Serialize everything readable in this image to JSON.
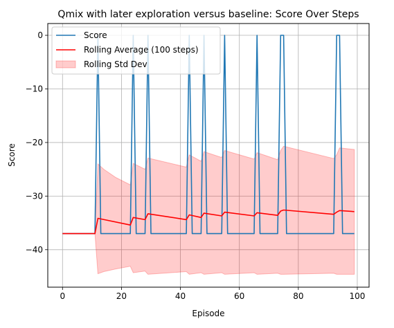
{
  "chart_data": {
    "type": "line",
    "title": "Qmix with later exploration versus baseline: Score Over Steps",
    "xlabel": "Episode",
    "ylabel": "Score",
    "xlim": [
      -5,
      104
    ],
    "ylim": [
      -47,
      2.2
    ],
    "xticks": [
      0,
      20,
      40,
      60,
      80,
      100
    ],
    "yticks": [
      0,
      -10,
      -20,
      -30,
      -40
    ],
    "xtick_labels": [
      "0",
      "20",
      "40",
      "60",
      "80",
      "100"
    ],
    "ytick_labels": [
      "0",
      "−10",
      "−20",
      "−30",
      "−40"
    ],
    "grid": true,
    "legend_position": "top-left",
    "legend": [
      "Score",
      "Rolling Average (100 steps)",
      "Rolling Std Dev"
    ],
    "colors": {
      "score": "#1f77b4",
      "rolling_avg": "#ff0000",
      "std_fill": "#ff9999"
    },
    "series": [
      {
        "name": "Score",
        "x": [
          0,
          1,
          2,
          3,
          4,
          5,
          6,
          7,
          8,
          9,
          10,
          11,
          12,
          13,
          14,
          15,
          16,
          17,
          18,
          19,
          20,
          21,
          22,
          23,
          24,
          25,
          26,
          27,
          28,
          29,
          30,
          31,
          32,
          33,
          34,
          35,
          36,
          37,
          38,
          39,
          40,
          41,
          42,
          43,
          44,
          45,
          46,
          47,
          48,
          49,
          50,
          51,
          52,
          53,
          54,
          55,
          56,
          57,
          58,
          59,
          60,
          61,
          62,
          63,
          64,
          65,
          66,
          67,
          68,
          69,
          70,
          71,
          72,
          73,
          74,
          75,
          76,
          77,
          78,
          79,
          80,
          81,
          82,
          83,
          84,
          85,
          86,
          87,
          88,
          89,
          90,
          91,
          92,
          93,
          94,
          95,
          96,
          97,
          98,
          99
        ],
        "values": [
          -37,
          -37,
          -37,
          -37,
          -37,
          -37,
          -37,
          -37,
          -37,
          -37,
          -37,
          -37,
          0,
          -37,
          -37,
          -37,
          -37,
          -37,
          -37,
          -37,
          -37,
          -37,
          -37,
          -37,
          0,
          -37,
          -37,
          -37,
          -37,
          0,
          -37,
          -37,
          -37,
          -37,
          -37,
          -37,
          -37,
          -37,
          -37,
          -37,
          -37,
          -37,
          -37,
          0,
          -37,
          -37,
          -37,
          -37,
          0,
          -37,
          -37,
          -37,
          -37,
          -37,
          -37,
          0,
          -37,
          -37,
          -37,
          -37,
          -37,
          -37,
          -37,
          -37,
          -37,
          -37,
          0,
          -37,
          -37,
          -37,
          -37,
          -37,
          -37,
          -37,
          0,
          0,
          -37,
          -37,
          -37,
          -37,
          -37,
          -37,
          -37,
          -37,
          -37,
          -37,
          -37,
          -37,
          -37,
          -37,
          -37,
          -37,
          -37,
          0,
          0,
          -37,
          -37,
          -37,
          -37,
          -37
        ]
      },
      {
        "name": "Rolling Average (100 steps)",
        "x": [
          0,
          11,
          12,
          23,
          24,
          28,
          29,
          42,
          43,
          47,
          48,
          54,
          55,
          65,
          66,
          73,
          74,
          75,
          92,
          93,
          94,
          99
        ],
        "values": [
          -37,
          -37,
          -34.15,
          -35.4,
          -34.0,
          -34.4,
          -33.3,
          -34.4,
          -33.5,
          -34.0,
          -33.2,
          -33.7,
          -33.0,
          -33.7,
          -33.1,
          -33.6,
          -32.8,
          -32.6,
          -33.4,
          -33.0,
          -32.7,
          -32.9
        ]
      },
      {
        "name": "Rolling Std Dev",
        "x": [
          0,
          11,
          12,
          14,
          18,
          23,
          24,
          28,
          29,
          42,
          43,
          47,
          48,
          54,
          55,
          65,
          66,
          73,
          74,
          75,
          92,
          93,
          94,
          99
        ],
        "upper": [
          -37,
          -37,
          -24.0,
          -25.0,
          -26.5,
          -27.9,
          -23.9,
          -25.0,
          -22.9,
          -24.6,
          -22.3,
          -23.5,
          -21.7,
          -22.8,
          -21.5,
          -23.1,
          -21.9,
          -23.2,
          -21.5,
          -20.7,
          -23.0,
          -22.3,
          -21.0,
          -21.3
        ],
        "lower": [
          -37,
          -37,
          -44.5,
          -44.1,
          -43.6,
          -43.1,
          -44.3,
          -44.0,
          -44.6,
          -44.1,
          -44.6,
          -44.3,
          -44.6,
          -44.3,
          -44.6,
          -44.3,
          -44.6,
          -44.4,
          -44.6,
          -44.6,
          -44.4,
          -44.6,
          -44.6,
          -44.6
        ]
      }
    ]
  }
}
